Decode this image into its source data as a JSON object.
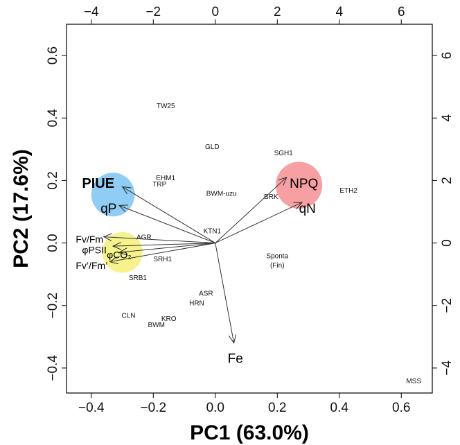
{
  "chart_data": {
    "type": "scatter",
    "subtype": "pca-biplot",
    "xlabel": "PC1 (63.0%)",
    "ylabel": "PC2 (17.6%)",
    "xlim": [
      -0.48,
      0.7
    ],
    "ylim": [
      -0.48,
      0.7
    ],
    "x_ticks": [
      -0.4,
      -0.2,
      0,
      0.2,
      0.4,
      0.6
    ],
    "x_tick_labels": [
      "−0.4",
      "−0.2",
      "0.0",
      "0.2",
      "0.4",
      "0.6"
    ],
    "y_ticks": [
      -0.4,
      -0.2,
      0,
      0.2,
      0.4,
      0.6
    ],
    "y_tick_labels": [
      "−0.4",
      "−0.2",
      "0.0",
      "0.2",
      "0.4",
      "0.6"
    ],
    "top_ticks": [
      -4,
      -2,
      0,
      2,
      4,
      6
    ],
    "top_tick_labels": [
      "−4",
      "−2",
      "0",
      "2",
      "4",
      "6"
    ],
    "right_ticks": [
      -4,
      -2,
      0,
      2,
      4,
      6
    ],
    "right_tick_labels": [
      "−4",
      "−2",
      "0",
      "2",
      "4",
      "6"
    ],
    "grid": false,
    "observations": [
      {
        "label": "TW25",
        "x": -0.16,
        "y": 0.44
      },
      {
        "label": "GLD",
        "x": -0.01,
        "y": 0.31
      },
      {
        "label": "SGH1",
        "x": 0.22,
        "y": 0.29
      },
      {
        "label": "EHM1",
        "x": -0.16,
        "y": 0.21
      },
      {
        "label": "TRP",
        "x": -0.18,
        "y": 0.19
      },
      {
        "label": "BWM-uzu",
        "x": 0.02,
        "y": 0.16
      },
      {
        "label": "BRK",
        "x": 0.18,
        "y": 0.15
      },
      {
        "label": "ETH2",
        "x": 0.43,
        "y": 0.17
      },
      {
        "label": "KTN1",
        "x": -0.01,
        "y": 0.04
      },
      {
        "label": "AGR",
        "x": -0.23,
        "y": 0.02
      },
      {
        "label": "SRH1",
        "x": -0.17,
        "y": -0.05
      },
      {
        "label": "Sponta",
        "x": 0.2,
        "y": -0.04
      },
      {
        "label": "(Fin)",
        "x": 0.2,
        "y": -0.07
      },
      {
        "label": "SRB1",
        "x": -0.25,
        "y": -0.11
      },
      {
        "label": "ASR",
        "x": -0.03,
        "y": -0.16
      },
      {
        "label": "HRN",
        "x": -0.06,
        "y": -0.19
      },
      {
        "label": "CLN",
        "x": -0.28,
        "y": -0.23
      },
      {
        "label": "KRO",
        "x": -0.15,
        "y": -0.24
      },
      {
        "label": "BWM",
        "x": -0.19,
        "y": -0.26
      },
      {
        "label": "MSS",
        "x": 0.64,
        "y": -0.44
      }
    ],
    "loadings": [
      {
        "label": "PIUE",
        "x": -0.3,
        "y": 0.18,
        "label_x": -0.43,
        "label_y": 0.19,
        "style": "bold"
      },
      {
        "label": "qP",
        "x": -0.31,
        "y": 0.12,
        "label_x": -0.37,
        "label_y": 0.11,
        "style": "large"
      },
      {
        "label": "Fv/Fm",
        "x": -0.36,
        "y": 0.02,
        "label_x": -0.45,
        "label_y": 0.015,
        "style": "medium"
      },
      {
        "label": "φPSII",
        "x": -0.33,
        "y": -0.01,
        "label_x": -0.43,
        "label_y": -0.02,
        "style": "medium"
      },
      {
        "label": "φCO₂",
        "x": -0.31,
        "y": -0.03,
        "label_x": -0.35,
        "label_y": -0.035,
        "style": "medium"
      },
      {
        "label": "Fv’/Fm’",
        "x": -0.34,
        "y": -0.06,
        "label_x": -0.45,
        "label_y": -0.07,
        "style": "medium"
      },
      {
        "label": "NPQ",
        "x": 0.23,
        "y": 0.21,
        "label_x": 0.24,
        "label_y": 0.19,
        "style": "large"
      },
      {
        "label": "qN",
        "x": 0.28,
        "y": 0.13,
        "label_x": 0.27,
        "label_y": 0.11,
        "style": "large"
      },
      {
        "label": "Fe",
        "x": 0.06,
        "y": -0.32,
        "label_x": 0.04,
        "label_y": -0.37,
        "style": "large"
      }
    ],
    "highlights": [
      {
        "x": -0.33,
        "y": 0.155,
        "rx": 0.07,
        "ry": 0.07,
        "color": "#8fcdf5"
      },
      {
        "x": -0.3,
        "y": -0.03,
        "rx": 0.065,
        "ry": 0.065,
        "color": "#f6f38c"
      },
      {
        "x": 0.27,
        "y": 0.185,
        "rx": 0.075,
        "ry": 0.075,
        "color": "#f7a0a3"
      }
    ],
    "colors": {
      "axis": "#000000",
      "arrow": "#333333",
      "text": "#000000"
    }
  }
}
